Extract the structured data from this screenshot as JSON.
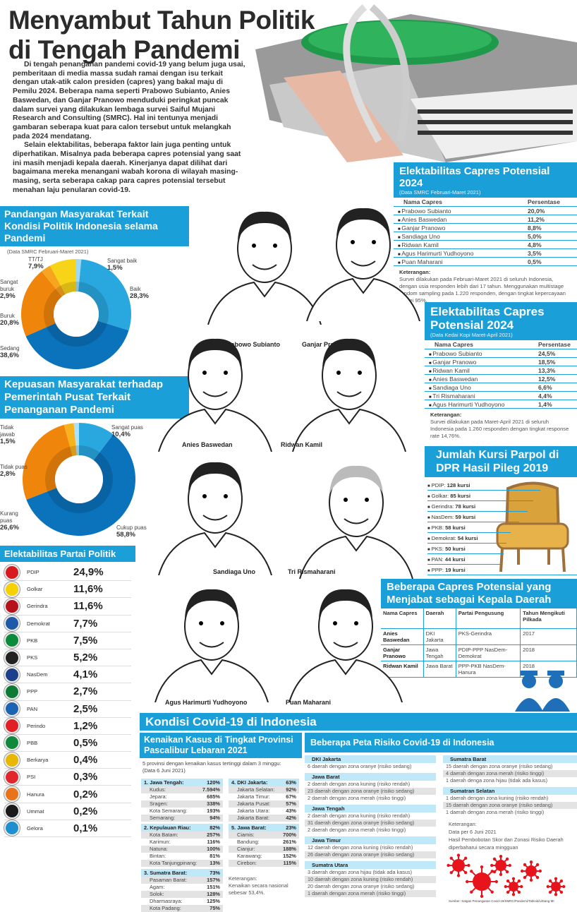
{
  "title": {
    "line1": "Menyambut Tahun Politik",
    "line2": "di Tengah Pandemi"
  },
  "intro": [
    "Di tengah penanganan pandemi covid-19 yang belum juga usai, pemberitaan di media massa sudah ramai dengan isu terkait dengan utak-atik calon presiden (capres) yang bakal maju di Pemilu 2024. Beberapa nama seperti Prabowo Subianto, Anies Baswedan, dan Ganjar Pranowo menduduki peringkat puncak dalam survei yang dilakukan lembaga survei Saiful Mujani Research and Consulting (SMRC). Hal ini tentunya menjadi gambaran seberapa kuat para calon tersebut untuk melangkah pada 2024 mendatang.",
    "Selain elektabilitas, beberapa faktor lain juga penting untuk diperhatikan. Misalnya pada beberapa capres potensial yang saat ini masih menjadi kepala daerah. Kinerjanya dapat dilihat dari bagaimana mereka menangani wabah korona di wilayah masing-masing, serta seberapa cakap para capres potensial tersebut menahan laju penularan covid-19."
  ],
  "colors": {
    "accent": "#1a9fd9",
    "light": "#bfe8f8",
    "virus": "#e8141b"
  },
  "smrc": {
    "title": "Elektabilitas Capres Potensial 2024",
    "subtitle": "(Data SMRC Februari-Maret 2021)",
    "col_name": "Nama Capres",
    "col_pct": "Persentase",
    "rows": [
      [
        "Prabowo Subianto",
        "20,0%"
      ],
      [
        "Anies Baswedan",
        "11,2%"
      ],
      [
        "Ganjar Pranowo",
        "8,8%"
      ],
      [
        "Sandiaga Uno",
        "5,0%"
      ],
      [
        "Ridwan Kamil",
        "4,8%"
      ],
      [
        "Agus Harimurti Yudhoyono",
        "3,5%"
      ],
      [
        "Puan Maharani",
        "0,5%"
      ]
    ],
    "note_label": "Keterangan:",
    "note": "Survei dilakukan pada Februari-Maret 2021 di seluruh Indonesia, dengan usia responden lebih dari 17 tahun. Menggunakan multistage random sampling pada 1.220 responden, dengan tingkat kepercayaan survei 95%."
  },
  "kedai": {
    "title": "Elektabilitas Capres Potensial 2024",
    "subtitle": "(Data Kedai Kopi Maret-April 2021)",
    "col_name": "Nama Capres",
    "col_pct": "Persentase",
    "rows": [
      [
        "Prabowo Subianto",
        "24,5%"
      ],
      [
        "Ganjar Pranowo",
        "18,5%"
      ],
      [
        "Ridwan Kamil",
        "13,3%"
      ],
      [
        "Anies Baswedan",
        "12,5%"
      ],
      [
        "Sandiaga Uno",
        "6,6%"
      ],
      [
        "Tri Rismaharani",
        "4,4%"
      ],
      [
        "Agus Harimurti Yudhoyono",
        "1,4%"
      ]
    ],
    "note_label": "Keterangan:",
    "note": "Survei dilakukan pada Maret-April 2021 di seluruh Indonesia pada 1.260 responden dengan tingkat response rate 14,76%."
  },
  "chart_data": [
    {
      "type": "pie",
      "title": "Pandangan Masyarakat Terkait Kondisi Politik Indonesia selama Pandemi",
      "subtitle": "(Data SMRC Februari-Maret 2021)",
      "donut": true,
      "slices": [
        {
          "label": "Sangat baik",
          "value": 1.5,
          "text": "1,5%",
          "color": "#9fd8f2"
        },
        {
          "label": "Baik",
          "value": 28.3,
          "text": "28,3%",
          "color": "#29a8e0"
        },
        {
          "label": "Sedang",
          "value": 38.6,
          "text": "38,6%",
          "color": "#0b72bc"
        },
        {
          "label": "Buruk",
          "value": 20.8,
          "text": "20,8%",
          "color": "#ef860b"
        },
        {
          "label": "Sangat buruk",
          "value": 2.9,
          "text": "2,9%",
          "color": "#f7a51e"
        },
        {
          "label": "TT/TJ",
          "value": 7.9,
          "text": "7,9%",
          "color": "#f7d417"
        }
      ]
    },
    {
      "type": "pie",
      "title": "Kepuasan Masyarakat terhadap Pemerintah Pusat Terkait Penanganan Pandemi",
      "donut": true,
      "slices": [
        {
          "label": "Sangat puas",
          "value": 10.4,
          "text": "10,4%",
          "color": "#29a8e0"
        },
        {
          "label": "Cukup puas",
          "value": 58.8,
          "text": "58,8%",
          "color": "#0b72bc"
        },
        {
          "label": "Kurang puas",
          "value": 26.6,
          "text": "26,6%",
          "color": "#ef860b"
        },
        {
          "label": "Tidak puas",
          "value": 2.8,
          "text": "2,8%",
          "color": "#f7b21e"
        },
        {
          "label": "Tidak jawab",
          "value": 1.5,
          "text": "1,5%",
          "color": "#aee0f7"
        }
      ]
    }
  ],
  "partai": {
    "title": "Elektabilitas Partai Politik",
    "rows": [
      {
        "name": "PDIP",
        "value": "24,9%",
        "color": "#d71920"
      },
      {
        "name": "Golkar",
        "value": "11,6%",
        "color": "#f6d100"
      },
      {
        "name": "Gerindra",
        "value": "11,6%",
        "color": "#b5121b"
      },
      {
        "name": "Demokrat",
        "value": "7,7%",
        "color": "#1f5aa8"
      },
      {
        "name": "PKB",
        "value": "7,5%",
        "color": "#0a8a3a"
      },
      {
        "name": "PKS",
        "value": "5,2%",
        "color": "#222222"
      },
      {
        "name": "NasDem",
        "value": "4,1%",
        "color": "#1b3f8b"
      },
      {
        "name": "PPP",
        "value": "2,7%",
        "color": "#0d7a35"
      },
      {
        "name": "PAN",
        "value": "2,5%",
        "color": "#1d63b3"
      },
      {
        "name": "Perindo",
        "value": "1,2%",
        "color": "#e21f26"
      },
      {
        "name": "PBB",
        "value": "0,5%",
        "color": "#0f8a3c"
      },
      {
        "name": "Berkarya",
        "value": "0,4%",
        "color": "#e8b800"
      },
      {
        "name": "PSI",
        "value": "0,3%",
        "color": "#e2262e"
      },
      {
        "name": "Hanura",
        "value": "0,2%",
        "color": "#e8731b"
      },
      {
        "name": "Ummat",
        "value": "0,2%",
        "color": "#1a1a1a"
      },
      {
        "name": "Gelora",
        "value": "0,1%",
        "color": "#1f8fd0"
      }
    ]
  },
  "portraits": [
    "Prabowo Subianto",
    "Ganjar Pranowo",
    "Anies Baswedan",
    "Ridwan Kamil",
    "Sandiaga Uno",
    "Tri Rismaharani",
    "Agus Harimurti Yudhoyono",
    "Puan Maharani"
  ],
  "kursi": {
    "title": "Jumlah Kursi Parpol di DPR Hasil Pileg 2019",
    "rows": [
      [
        "PDIP:",
        "128 kursi"
      ],
      [
        "Golkar:",
        "85 kursi"
      ],
      [
        "Gerindra:",
        "78 kursi"
      ],
      [
        "NasDem:",
        "59 kursi"
      ],
      [
        "PKB:",
        "58 kursi"
      ],
      [
        "Demokrat:",
        "54 kursi"
      ],
      [
        "PKS:",
        "50 kursi"
      ],
      [
        "PAN:",
        "44 kursi"
      ],
      [
        "PPP:",
        "19 kursi"
      ]
    ]
  },
  "kepala_daerah": {
    "title": "Beberapa Capres Potensial yang Menjabat sebagai Kepala Daerah",
    "headers": [
      "Nama Capres",
      "Daerah",
      "Partai Pengusung",
      "Tahun Mengikuti Pilkada"
    ],
    "rows": [
      [
        "Anies Baswedan",
        "DKI Jakarta",
        "PKS-Gerindra",
        "2017"
      ],
      [
        "Ganjar Pranowo",
        "Jawa Tengah",
        "PDIP-PPP NasDem-Demokrat",
        "2018"
      ],
      [
        "Ridwan Kamil",
        "Jawa Barat",
        "PPP-PKB NasDem-Hanura",
        "2018"
      ]
    ]
  },
  "covid": {
    "title": "Kondisi Covid-19 di Indonesia",
    "kasus": {
      "title": "Kenaikan Kasus di Tingkat Provinsi Pascalibur Lebaran 2021",
      "desc": "5 provinsi dengan kenaikan kasus tertinggi dalam 3 minggu:",
      "date": "(Data 6 Juni 2021)",
      "left": [
        {
          "name": "1. Jawa Tengah:",
          "value": "120%",
          "items": [
            [
              "Kudus:",
              "7.594%"
            ],
            [
              "Jepara:",
              "685%"
            ],
            [
              "Sragen:",
              "338%"
            ],
            [
              "Kota Semarang:",
              "193%"
            ],
            [
              "Semarang:",
              "94%"
            ]
          ]
        },
        {
          "name": "2. Kepulauan Riau:",
          "value": "82%",
          "items": [
            [
              "Kota Batam:",
              "257%"
            ],
            [
              "Karimun:",
              "116%"
            ],
            [
              "Natuna:",
              "100%"
            ],
            [
              "Bintan:",
              "81%"
            ],
            [
              "Kota Tanjungpinang:",
              "13%"
            ]
          ]
        },
        {
          "name": "3. Sumatra Barat:",
          "value": "73%",
          "items": [
            [
              "Pasaman Barat:",
              "157%"
            ],
            [
              "Agam:",
              "151%"
            ],
            [
              "Solok:",
              "128%"
            ],
            [
              "Dharmasraya:",
              "125%"
            ],
            [
              "Kota Padang:",
              "75%"
            ]
          ]
        }
      ],
      "right": [
        {
          "name": "4. DKI Jakarta:",
          "value": "63%",
          "items": [
            [
              "Jakarta Selatan:",
              "92%"
            ],
            [
              "Jakarta Timur:",
              "67%"
            ],
            [
              "Jakarta Pusat:",
              "57%"
            ],
            [
              "Jakarta Utara:",
              "43%"
            ],
            [
              "Jakarta Barat:",
              "42%"
            ]
          ]
        },
        {
          "name": "5. Jawa Barat:",
          "value": "23%",
          "items": [
            [
              "Ciamis:",
              "700%"
            ],
            [
              "Bandung:",
              "261%"
            ],
            [
              "Cianjur:",
              "188%"
            ],
            [
              "Karawang:",
              "152%"
            ],
            [
              "Cirebon:",
              "115%"
            ]
          ]
        }
      ],
      "note_label": "Keterangan:",
      "note": "Kenaikan secara nasional sebesar 53,4%."
    },
    "risiko": {
      "title": "Beberapa Peta Risiko Covid-19 di Indonesia",
      "left": [
        {
          "name": "DKI Jakarta",
          "items": [
            "6 daerah dengan zona oranye (risiko sedang)"
          ]
        },
        {
          "name": "Jawa Barat",
          "items": [
            "2 daerah dengan zona kuning (risiko rendah)",
            "23 daerah dengan zona oranye (risiko sedang)",
            "2 daerah dengan zona merah (risiko tinggi)"
          ]
        },
        {
          "name": "Jawa Tengah",
          "items": [
            "2 daerah dengan zona kuning (risiko rendah)",
            "31 daerah dengan zona oranye (risiko sedang)",
            "2 daerah dengan zona merah (risiko tinggi)"
          ]
        },
        {
          "name": "Jawa Timur",
          "items": [
            "12 daerah dengan zona kuning (risiko rendah)",
            "26 daerah dengan zona oranye (risiko sedang)"
          ]
        },
        {
          "name": "Sumatra Utara",
          "items": [
            "3 daerah dengan zona hijau (tidak ada kasus)",
            "10 daerah dengan zona kuning (risiko rendah)",
            "20 daerah dengan zona oranye (risiko sedang)",
            "1 daerah dengan zona merah (risiko tinggi)"
          ]
        }
      ],
      "right": [
        {
          "name": "Sumatra Barat",
          "items": [
            "15 daerah dengan zona oranye (risiko sedang)",
            "4 daerah dengan zona merah (risiko tinggi)",
            "1 daerah denga zona hijau (tidak ada kasus)"
          ]
        },
        {
          "name": "Sumatran Selatan",
          "items": [
            "1 daerah dengan zona kuning (risiko rendah)",
            "15 daerah dengan zona oranye (risiko sedang)",
            "1 daerah dengan zona merah (risiko tinggi)"
          ]
        }
      ],
      "note_label": "Keterangan:",
      "notes": [
        "Data per 6 Juni 2021",
        "Hasil Pembobotan Skor dan Zonasi Risiko Daerah diperbaharui secara mingguan"
      ]
    },
    "source": "Sumber: Satgas Penanganan Covid-19/SMRC/Pandemi/Tabloid/Litbang MI"
  }
}
